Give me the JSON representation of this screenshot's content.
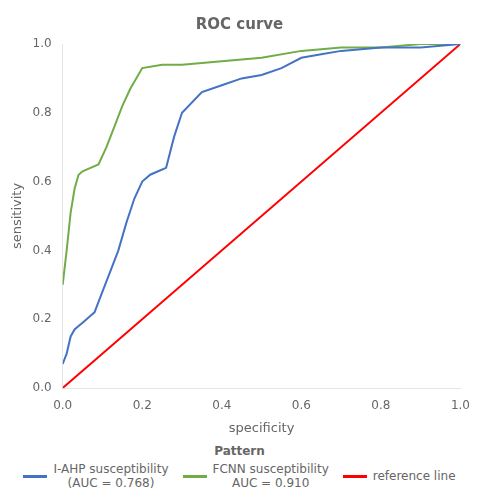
{
  "chart_data": {
    "type": "line",
    "title": "ROC curve",
    "x_label": "specificity",
    "y_label": "sensitivity",
    "legend_title": "Pattern",
    "series": [
      {
        "name": "I-AHP susceptibility\n(AUC = 0.768)",
        "color": "#4472c4",
        "x": [
          0.0,
          0.01,
          0.02,
          0.03,
          0.04,
          0.05,
          0.06,
          0.07,
          0.08,
          0.1,
          0.12,
          0.14,
          0.16,
          0.18,
          0.2,
          0.22,
          0.24,
          0.26,
          0.28,
          0.3,
          0.35,
          0.4,
          0.45,
          0.5,
          0.55,
          0.6,
          0.65,
          0.7,
          0.8,
          0.9,
          1.0
        ],
        "values": [
          0.07,
          0.1,
          0.15,
          0.17,
          0.18,
          0.19,
          0.2,
          0.21,
          0.22,
          0.28,
          0.34,
          0.4,
          0.48,
          0.55,
          0.6,
          0.62,
          0.63,
          0.64,
          0.73,
          0.8,
          0.86,
          0.88,
          0.9,
          0.91,
          0.93,
          0.96,
          0.97,
          0.98,
          0.99,
          0.99,
          1.0
        ]
      },
      {
        "name": "FCNN susceptibility\nAUC = 0.910",
        "color": "#70ad47",
        "x": [
          0.0,
          0.01,
          0.02,
          0.03,
          0.04,
          0.05,
          0.07,
          0.09,
          0.11,
          0.13,
          0.15,
          0.17,
          0.2,
          0.25,
          0.3,
          0.4,
          0.5,
          0.6,
          0.7,
          0.8,
          0.9,
          1.0
        ],
        "values": [
          0.3,
          0.4,
          0.51,
          0.58,
          0.62,
          0.63,
          0.64,
          0.65,
          0.7,
          0.76,
          0.82,
          0.87,
          0.93,
          0.94,
          0.94,
          0.95,
          0.96,
          0.98,
          0.99,
          0.99,
          1.0,
          1.0
        ]
      },
      {
        "name": "reference line",
        "color": "#ff0000",
        "x": [
          0,
          1
        ],
        "values": [
          0,
          1
        ]
      }
    ],
    "xlim": [
      0.0,
      1.0
    ],
    "ylim": [
      0.0,
      1.0
    ],
    "xticks": [
      {
        "value": 0.0,
        "label": "0.0"
      },
      0.2,
      0.4,
      0.6,
      0.8,
      {
        "value": 1.0,
        "label": "1.0"
      }
    ],
    "yticks": [
      {
        "value": 0.0,
        "label": "0.0"
      },
      0.2,
      0.4,
      0.6,
      0.8,
      {
        "value": 1.0,
        "label": "1.0"
      }
    ],
    "grid": false,
    "legend": "bottom"
  }
}
